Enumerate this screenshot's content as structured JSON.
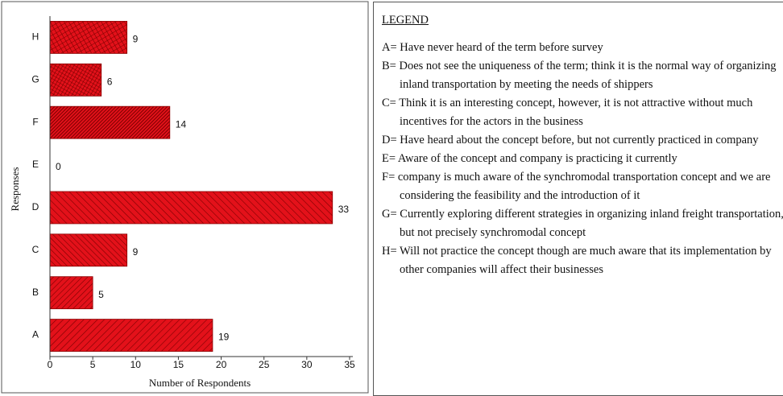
{
  "chart_data": {
    "type": "barh",
    "categories": [
      "A",
      "B",
      "C",
      "D",
      "E",
      "F",
      "G",
      "H"
    ],
    "values": [
      19,
      5,
      9,
      33,
      0,
      14,
      6,
      9
    ],
    "color": "#e3111a",
    "xlim": [
      0,
      35
    ],
    "xticks": [
      0,
      5,
      10,
      15,
      20,
      25,
      30,
      35
    ],
    "xlabel": "Number of Respondents",
    "ylabel": "Responses"
  },
  "legend_panel": {
    "title": "LEGEND",
    "items": [
      "A= Have never heard of the term before survey",
      "B= Does not see the uniqueness of the term; think it is the normal way of organizing inland transportation by meeting the needs of shippers",
      "C= Think it is an interesting concept, however, it is not attractive without much incentives for the actors in the business",
      "D= Have heard about the concept before, but not currently practiced in company",
      "E= Aware of the concept and company is practicing it currently",
      "F= company is much aware of the synchromodal transportation concept and we are considering the feasibility and the introduction of it",
      "G= Currently exploring different strategies in organizing inland freight transportation, but not precisely synchromodal concept",
      "H= Will not practice the concept though are much aware that its implementation by other companies will affect their businesses"
    ]
  }
}
